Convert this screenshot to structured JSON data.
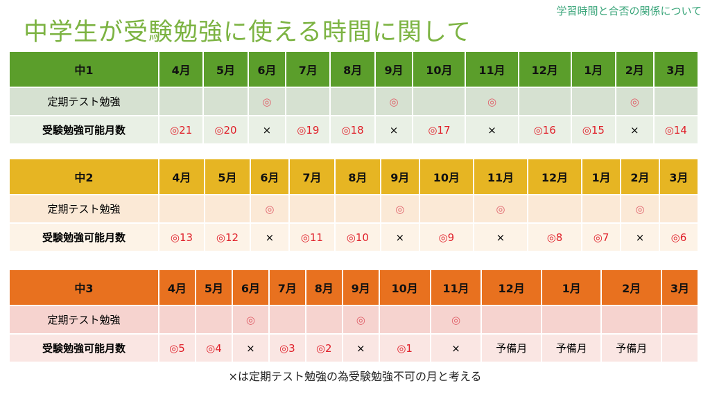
{
  "subtitle": "学習時間と合否の関係について",
  "title": "中学生が受験勉強に使える時間に関して",
  "months": [
    "4月",
    "5月",
    "6月",
    "7月",
    "8月",
    "9月",
    "10月",
    "11月",
    "12月",
    "1月",
    "2月",
    "3月"
  ],
  "row_labels": {
    "test": "定期テスト勉強",
    "available": "受験勉強可能月数"
  },
  "tables": [
    {
      "grade": "中1",
      "colors": {
        "header": "#5b9e2b",
        "row1": "#d6e1d1",
        "row2": "#e9f0e5"
      },
      "test": [
        "",
        "",
        "◎",
        "",
        "",
        "◎",
        "",
        "◎",
        "",
        "",
        "◎",
        ""
      ],
      "available": [
        "◎21",
        "◎20",
        "×",
        "◎19",
        "◎18",
        "×",
        "◎17",
        "×",
        "◎16",
        "◎15",
        "×",
        "◎14"
      ]
    },
    {
      "grade": "中2",
      "colors": {
        "header": "#e6b523",
        "row1": "#fbe9d6",
        "row2": "#fdf3e7"
      },
      "test": [
        "",
        "",
        "◎",
        "",
        "",
        "◎",
        "",
        "◎",
        "",
        "",
        "◎",
        ""
      ],
      "available": [
        "◎13",
        "◎12",
        "×",
        "◎11",
        "◎10",
        "×",
        "◎9",
        "×",
        "◎8",
        "◎7",
        "×",
        "◎6"
      ]
    },
    {
      "grade": "中3",
      "colors": {
        "header": "#e8711f",
        "row1": "#f6d3cf",
        "row2": "#fae6e3"
      },
      "test": [
        "",
        "",
        "◎",
        "",
        "",
        "◎",
        "",
        "◎",
        "",
        "",
        "",
        ""
      ],
      "available": [
        "◎5",
        "◎4",
        "×",
        "◎3",
        "◎2",
        "×",
        "◎1",
        "×",
        "予備月",
        "予備月",
        "予備月",
        ""
      ]
    }
  ],
  "note": "×は定期テスト勉強の為受験勉強不可の月と考える"
}
